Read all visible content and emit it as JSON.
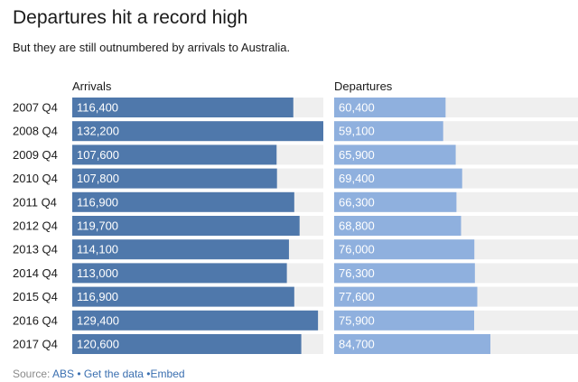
{
  "chart_data": {
    "type": "bar",
    "orientation": "horizontal",
    "title": "Departures hit a record high",
    "subtitle": "But they are still outnumbered by arrivals to Australia.",
    "categories": [
      "2007 Q4",
      "2008 Q4",
      "2009 Q4",
      "2010 Q4",
      "2011 Q4",
      "2012 Q4",
      "2013 Q4",
      "2014 Q4",
      "2015 Q4",
      "2016 Q4",
      "2017 Q4"
    ],
    "series": [
      {
        "name": "Arrivals",
        "color": "#4f78ab",
        "values": [
          116400,
          132200,
          107600,
          107800,
          116900,
          119700,
          114100,
          113000,
          116900,
          129400,
          120600
        ],
        "labels": [
          "116,400",
          "132,200",
          "107,600",
          "107,800",
          "116,900",
          "119,700",
          "114,100",
          "113,000",
          "116,900",
          "129,400",
          "120,600"
        ]
      },
      {
        "name": "Departures",
        "color": "#8fb0de",
        "values": [
          60400,
          59100,
          65900,
          69400,
          66300,
          68800,
          76000,
          76300,
          77600,
          75900,
          84700
        ],
        "labels": [
          "60,400",
          "59,100",
          "65,900",
          "69,400",
          "66,300",
          "68,800",
          "76,000",
          "76,300",
          "77,600",
          "75,900",
          "84,700"
        ]
      }
    ],
    "xlim": [
      0,
      132200
    ],
    "track_color": "#efefef",
    "legend": "none",
    "grid": false
  },
  "footer": {
    "source_label": "Source: ",
    "source_link": "ABS",
    "bullet": " • ",
    "get_data": "Get the data",
    "embed_sep": " •",
    "embed": "Embed"
  }
}
